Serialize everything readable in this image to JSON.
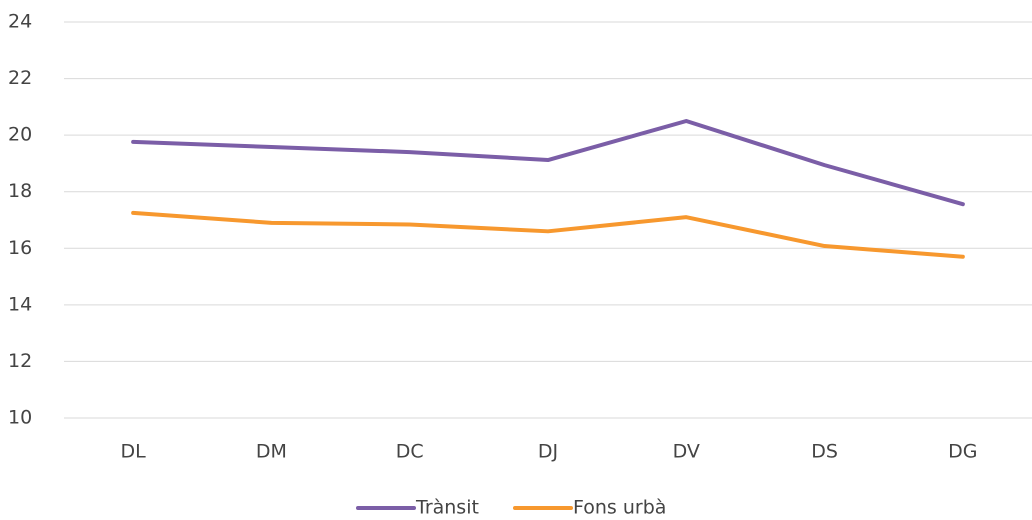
{
  "chart_data": {
    "type": "line",
    "categories": [
      "DL",
      "DM",
      "DC",
      "DJ",
      "DV",
      "DS",
      "DG"
    ],
    "series": [
      {
        "name": "Trànsit",
        "color": "#7b5ea7",
        "values": [
          19.76,
          19.58,
          19.4,
          19.12,
          20.5,
          18.94,
          17.56
        ]
      },
      {
        "name": "Fons urbà",
        "color": "#f7982e",
        "values": [
          17.25,
          16.9,
          16.84,
          16.6,
          17.1,
          16.08,
          15.7
        ]
      }
    ],
    "ylim": [
      10,
      24
    ],
    "yticks": [
      10,
      12,
      14,
      16,
      18,
      20,
      22,
      24
    ],
    "grid": true,
    "legend": "bottom"
  }
}
